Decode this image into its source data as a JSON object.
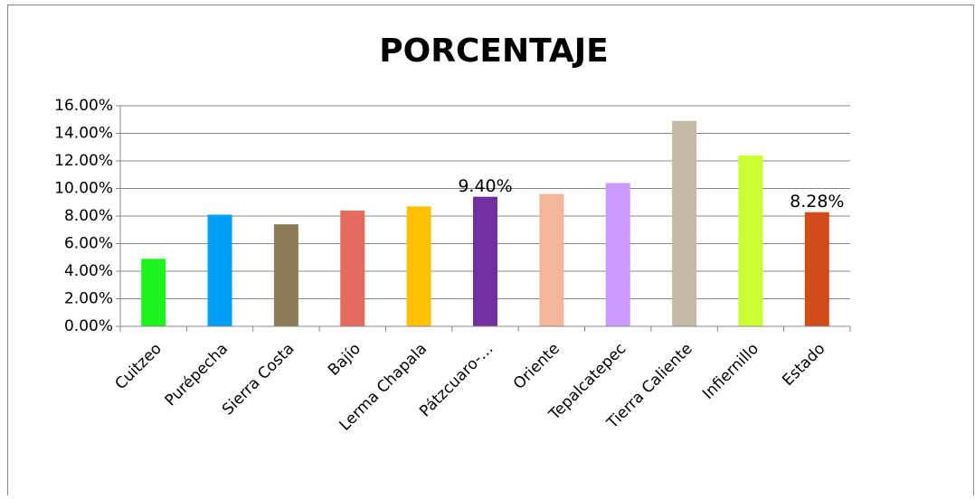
{
  "chart_data": {
    "type": "bar",
    "title": "PORCENTAJE",
    "categories": [
      "Cuitzeo",
      "Purépecha",
      "Sierra Costa",
      "Bajío",
      "Lerma Chapala",
      "Pátzcuaro-…",
      "Oriente",
      "Tepalcatepec",
      "Tierra Caliente",
      "Infiernillo",
      "Estado"
    ],
    "values": [
      4.9,
      8.1,
      7.4,
      8.4,
      8.7,
      9.4,
      9.6,
      10.4,
      14.9,
      12.4,
      8.28
    ],
    "value_labels": [
      null,
      null,
      null,
      null,
      null,
      "9.40%",
      null,
      null,
      null,
      null,
      "8.28%"
    ],
    "colors": [
      "#1cf51c",
      "#00a0f8",
      "#8b7b57",
      "#e36c5f",
      "#ffc000",
      "#7030a0",
      "#f4b59b",
      "#cc99ff",
      "#c4b9a2",
      "#ccff33",
      "#d24b18"
    ],
    "ylim": [
      0,
      16
    ],
    "yticks": [
      {
        "value": 0,
        "label": "0.00%"
      },
      {
        "value": 2,
        "label": "2.00%"
      },
      {
        "value": 4,
        "label": "4.00%"
      },
      {
        "value": 6,
        "label": "6.00%"
      },
      {
        "value": 8,
        "label": "8.00%"
      },
      {
        "value": 10,
        "label": "10.00%"
      },
      {
        "value": 12,
        "label": "12.00%"
      },
      {
        "value": 14,
        "label": "14.00%"
      },
      {
        "value": 16,
        "label": "16.00%"
      }
    ],
    "grid": true
  }
}
